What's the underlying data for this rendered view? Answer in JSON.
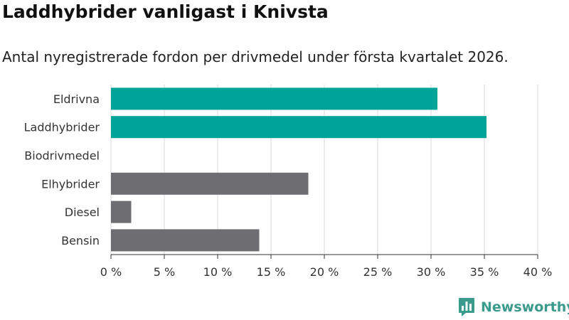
{
  "title": "Laddhybrider vanligast i Knivsta",
  "subtitle": "Antal nyregistrerade fordon per drivmedel under första kvartalet 2026.",
  "brand": {
    "name": "Newsworthy",
    "color": "#3a9a8c"
  },
  "colors": {
    "highlight": "#00a398",
    "other": "#6e6d72",
    "grid": "#d9d9d9",
    "text": "#333333"
  },
  "chart_data": {
    "type": "bar",
    "orientation": "horizontal",
    "categories": [
      "Eldrivna",
      "Laddhybrider",
      "Biodrivmedel",
      "Elhybrider",
      "Diesel",
      "Bensin"
    ],
    "values": [
      30.6,
      35.2,
      0,
      18.5,
      1.9,
      13.9
    ],
    "highlight": [
      true,
      true,
      false,
      false,
      false,
      false
    ],
    "xlim": [
      0,
      40
    ],
    "xticks": [
      0,
      5,
      10,
      15,
      20,
      25,
      30,
      35,
      40
    ],
    "xtick_labels": [
      "0 %",
      "5 %",
      "10 %",
      "15 %",
      "20 %",
      "25 %",
      "30 %",
      "35 %",
      "40 %"
    ],
    "grid": true,
    "legend": "none"
  }
}
